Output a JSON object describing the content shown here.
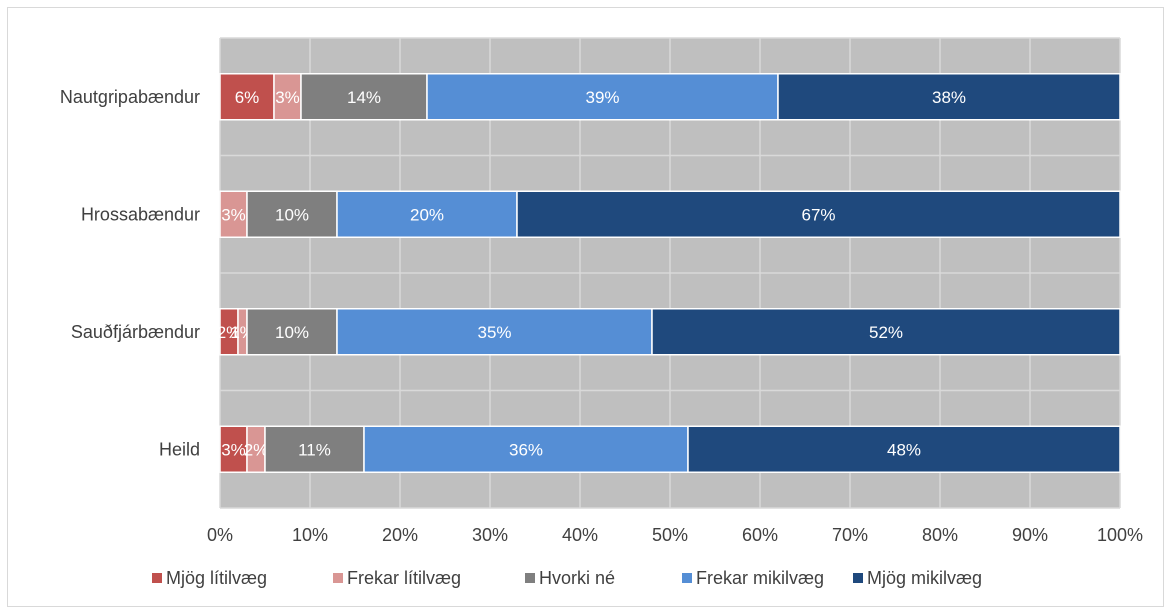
{
  "chart_data": {
    "type": "bar",
    "orientation": "horizontal",
    "stacked": "percent",
    "categories": [
      "Nautgripabændur",
      "Hrossabændur",
      "Sauðfjárbændur",
      "Heild"
    ],
    "series": [
      {
        "name": "Mjög lítilvæg",
        "color": "#c0504d",
        "values": [
          6,
          0,
          2,
          3
        ],
        "labels": [
          "6%",
          "",
          "2%",
          "3%"
        ]
      },
      {
        "name": "Frekar lítilvæg",
        "color": "#d99694",
        "values": [
          3,
          3,
          1,
          2
        ],
        "labels": [
          "3%",
          "3%",
          "1%",
          "2%"
        ]
      },
      {
        "name": "Hvorki né",
        "color": "#7f7f7f",
        "values": [
          14,
          10,
          10,
          11
        ],
        "labels": [
          "14%",
          "10%",
          "10%",
          "11%"
        ]
      },
      {
        "name": "Frekar mikilvæg",
        "color": "#558ed5",
        "values": [
          39,
          20,
          35,
          36
        ],
        "labels": [
          "39%",
          "20%",
          "35%",
          "36%"
        ]
      },
      {
        "name": "Mjög mikilvæg",
        "color": "#1f497d",
        "values": [
          38,
          67,
          52,
          48
        ],
        "labels": [
          "38%",
          "67%",
          "52%",
          "48%"
        ]
      }
    ],
    "x_ticks": [
      "0%",
      "10%",
      "20%",
      "30%",
      "40%",
      "50%",
      "60%",
      "70%",
      "80%",
      "90%",
      "100%"
    ],
    "xlim": [
      0,
      100
    ],
    "grid": true,
    "legend": "bottom"
  }
}
